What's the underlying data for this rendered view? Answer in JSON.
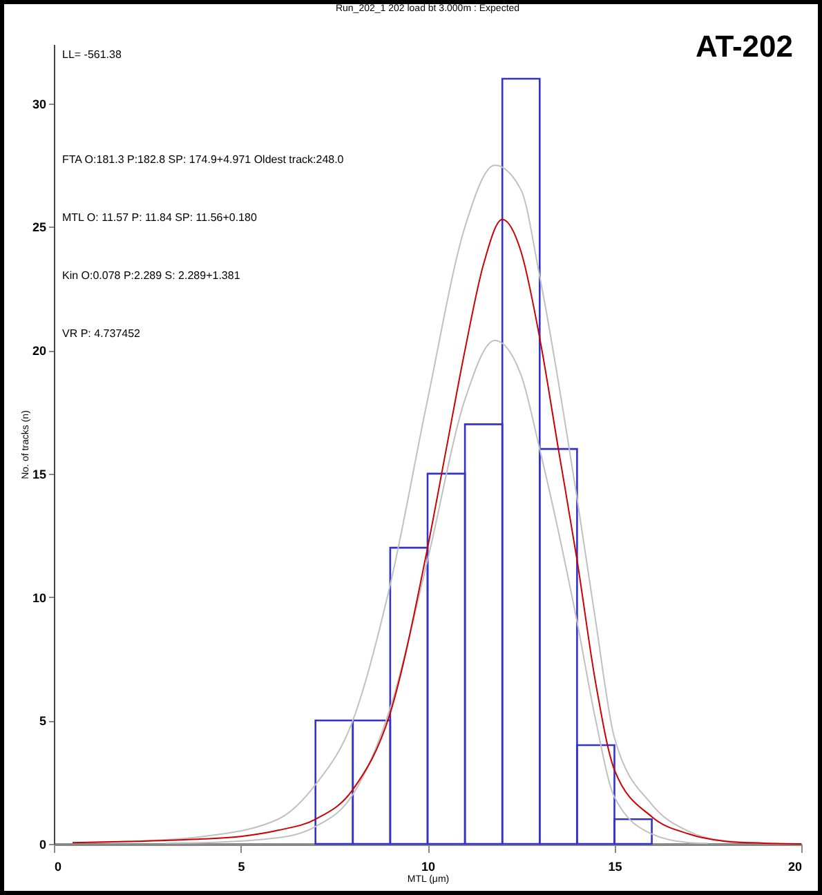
{
  "chart_data": {
    "type": "histogram",
    "title": "Run_202_1  202 load bt 3.000m : Expected",
    "xlabel": "MTL (μm)",
    "ylabel": "No. of tracks (n)",
    "bins": [
      7,
      8,
      9,
      10,
      11,
      12,
      13,
      14,
      15,
      16
    ],
    "values": [
      5,
      5,
      12,
      15,
      17,
      31,
      16,
      4,
      1
    ],
    "color": "#3333cc",
    "series": [
      {
        "type": "line",
        "color": "#c0c0c0",
        "x": [
          0.5,
          2,
          4,
          6,
          7,
          8,
          9,
          10,
          11,
          11.8,
          12.5,
          13,
          14,
          14.5,
          15,
          16,
          17,
          18,
          19,
          20
        ],
        "values": [
          0.05,
          0.1,
          0.3,
          1.0,
          2.4,
          5,
          10.5,
          18,
          25,
          27.5,
          26.5,
          23,
          14,
          9,
          4.3,
          1.6,
          0.5,
          0.12,
          0.03,
          0
        ]
      },
      {
        "type": "line",
        "color": "#c0c0c0",
        "x": [
          3,
          4,
          6,
          7,
          8,
          9,
          10,
          11,
          11.8,
          12.5,
          13,
          14,
          14.5,
          15,
          16,
          17,
          17.5
        ],
        "values": [
          0.03,
          0.05,
          0.25,
          0.7,
          2.0,
          5.5,
          11.5,
          18,
          20.4,
          19,
          16,
          9,
          5,
          1.9,
          0.4,
          0.05,
          0.02
        ]
      },
      {
        "type": "line",
        "color": "#cc0000",
        "x": [
          0.5,
          2,
          4,
          5,
          6,
          7,
          8,
          9,
          10,
          10.5,
          11,
          11.5,
          12,
          12.5,
          13,
          13.5,
          14,
          14.5,
          15,
          16,
          17,
          18,
          19,
          20
        ],
        "values": [
          0.05,
          0.1,
          0.2,
          0.3,
          0.55,
          1.0,
          2.2,
          5.3,
          12,
          16,
          20,
          23.5,
          25.3,
          24,
          20.5,
          16,
          11.5,
          6.5,
          3.0,
          1.1,
          0.4,
          0.1,
          0.03,
          0
        ]
      }
    ],
    "xlim": [
      0,
      20
    ],
    "xticks": [
      0,
      5,
      10,
      15,
      20
    ],
    "ylim": [
      0,
      32.4
    ],
    "yticks": [
      0,
      5,
      10,
      15,
      20,
      25,
      30
    ],
    "grid": false,
    "annotations": [
      "LL= -561.38",
      "FTA O:181.3 P:182.8 SP: 174.9+4.971 Oldest track:248.0",
      "MTL O: 11.57 P: 11.84 SP: 11.56+0.180",
      "Kin O:0.078 P:2.289 S: 2.289+1.381",
      "VR P: 4.737452",
      "AT-202"
    ]
  }
}
